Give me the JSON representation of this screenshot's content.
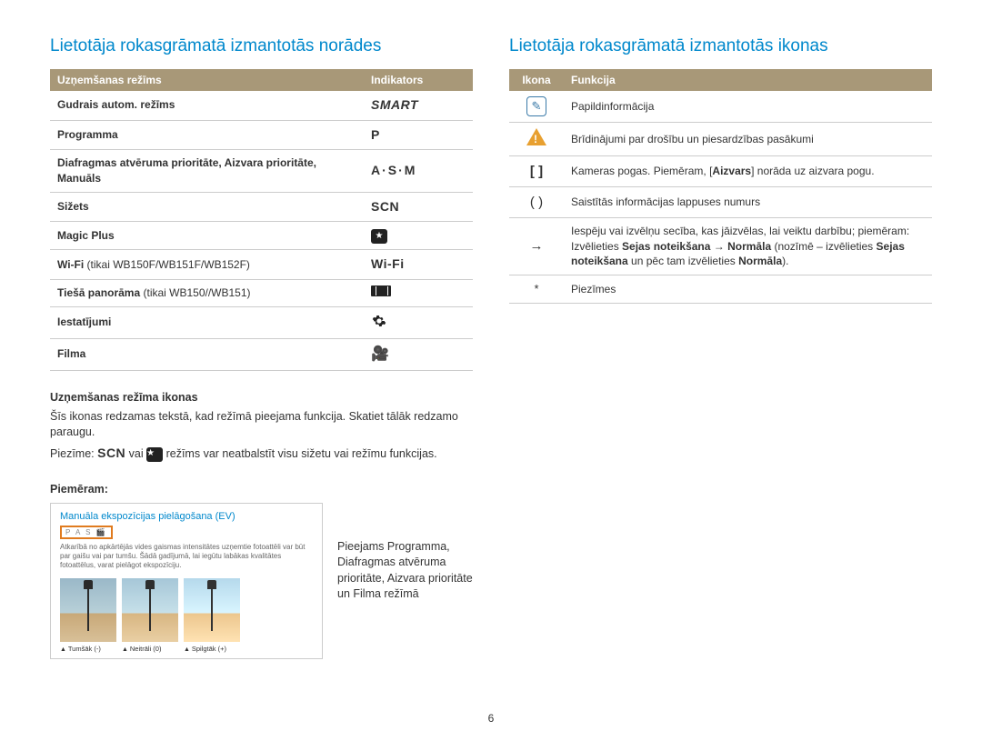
{
  "left": {
    "title": "Lietotāja rokasgrāmatā izmantotās norādes",
    "table": {
      "head_mode": "Uzņemšanas režīms",
      "head_ind": "Indikators",
      "rows": [
        {
          "mode": "Gudrais autom. režīms",
          "ind": "SMART",
          "ind_kind": "smart"
        },
        {
          "mode": "Programma",
          "ind": "P",
          "ind_kind": "P"
        },
        {
          "mode": "Diafragmas atvēruma prioritāte, Aizvara prioritāte, Manuāls",
          "ind": "A·S·M",
          "ind_kind": "asm"
        },
        {
          "mode": "Sižets",
          "ind": "SCN",
          "ind_kind": "scn"
        },
        {
          "mode": "Magic Plus",
          "ind": "★",
          "ind_kind": "box-star"
        },
        {
          "mode": "Wi-Fi",
          "paren": " (tikai WB150F/WB151F/WB152F)",
          "ind": "Wi-Fi",
          "ind_kind": "wifi"
        },
        {
          "mode": "Tiešā panorāma",
          "paren": " (tikai WB150//WB151)",
          "ind": "",
          "ind_kind": "pano"
        },
        {
          "mode": "Iestatījumi",
          "ind": "",
          "ind_kind": "gear"
        },
        {
          "mode": "Filma",
          "ind": "",
          "ind_kind": "film"
        }
      ]
    },
    "sub1_title": "Uzņemšanas režīma ikonas",
    "sub1_p1": "Šīs ikonas redzamas tekstā, kad režīmā pieejama funkcija. Skatiet tālāk redzamo paraugu.",
    "sub1_note_pre": "Piezīme: ",
    "sub1_note_mid": " vai ",
    "sub1_note_post": " režīms var neatbalstīt visu sižetu vai režīmu funkcijas.",
    "example_label": "Piemēram:",
    "example": {
      "title": "Manuāla ekspozīcijas pielāgošana (EV)",
      "strip": "P A S 🎬",
      "desc": "Atkarībā no apkārtējās vides gaismas intensitātes uzņemtie fotoattēli var būt par gaišu vai par tumšu. Šādā gadījumā, lai iegūtu labākas kvalitātes fotoattēlus, varat pielāgot ekspozīciju.",
      "thumbs": [
        "Tumšāk (-)",
        "Neitrāli (0)",
        "Spilgtāk (+)"
      ],
      "side": "Pieejams Programma, Diafragmas atvēruma prioritāte, Aizvara prioritāte un Filma režīmā"
    }
  },
  "right": {
    "title": "Lietotāja rokasgrāmatā izmantotās ikonas",
    "head_icon": "Ikona",
    "head_func": "Funkcija",
    "rows": [
      {
        "icon": "info",
        "text": "Papildinformācija"
      },
      {
        "icon": "warn",
        "text": "Brīdinājumi par drošību un piesardzības pasākumi"
      },
      {
        "icon": "bracket",
        "text_html": "Kameras pogas. Piemēram, [<b>Aizvars</b>] norāda uz aizvara pogu."
      },
      {
        "icon": "paren",
        "text": "Saistītās informācijas lappuses numurs"
      },
      {
        "icon": "arrow",
        "text_html": "Iespēju vai izvēlņu secība, kas jāizvēlas, lai veiktu darbību; piemēram: Izvēlieties <b>Sejas noteikšana</b> → <b>Normāla</b> (nozīmē – izvēlieties <b>Sejas noteikšana</b> un pēc tam izvēlieties <b>Normāla</b>)."
      },
      {
        "icon": "star",
        "text": "Piezīmes"
      }
    ]
  },
  "page_number": "6"
}
